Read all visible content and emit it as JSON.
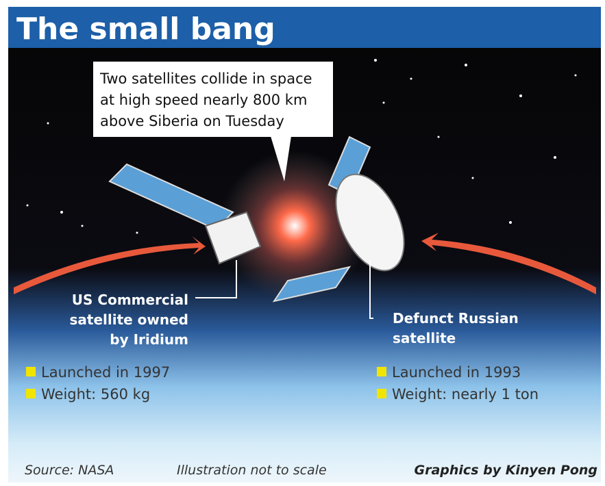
{
  "header": {
    "title": "The small bang"
  },
  "callout": {
    "lines": [
      "Two satellites collide in space",
      "at high speed nearly 800 km",
      "above Siberia on Tuesday"
    ]
  },
  "left_satellite": {
    "label": [
      "US Commercial",
      "satellite owned",
      "by Iridium"
    ],
    "facts": [
      "Launched in 1997",
      "Weight: 560 kg"
    ]
  },
  "right_satellite": {
    "label": [
      "Defunct Russian",
      "satellite"
    ],
    "facts": [
      "Launched in 1993",
      "Weight: nearly 1 ton"
    ]
  },
  "footer": {
    "source": "Source: NASA",
    "note": "Illustration not to scale",
    "credit": "Graphics by Kinyen Pong"
  }
}
